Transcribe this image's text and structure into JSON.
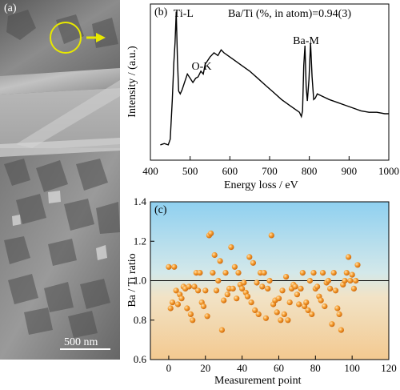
{
  "panel_a": {
    "label": "(a)",
    "scale_bar": "500 nm"
  },
  "chart_data": [
    {
      "type": "line",
      "panel_label": "(b)",
      "xlabel": "Energy loss / eV",
      "ylabel": "Intensity / (a.u.)",
      "xlim": [
        400,
        1000
      ],
      "xticks": [
        400,
        500,
        600,
        700,
        800,
        900,
        1000
      ],
      "annotation": "Ba/Ti (%, in atom)=0.94(3)",
      "peak_labels": [
        {
          "text": "Ti-L",
          "x": 462
        },
        {
          "text": "O-K",
          "x": 532
        },
        {
          "text": "Ba-M",
          "x": 795
        }
      ],
      "series": [
        {
          "x": [
            425,
            435,
            445,
            450,
            455,
            459,
            462,
            465,
            468,
            471,
            475,
            480,
            487,
            493,
            500,
            507,
            514,
            520,
            527,
            533,
            538,
            543,
            550,
            560,
            570,
            578,
            585,
            595,
            610,
            630,
            650,
            670,
            690,
            710,
            730,
            750,
            765,
            775,
            780,
            783,
            786,
            789,
            792,
            795,
            799,
            803,
            807,
            811,
            815,
            820,
            835,
            850,
            870,
            890,
            910,
            930,
            950,
            970,
            990,
            1000
          ],
          "y": [
            0.04,
            0.05,
            0.04,
            0.08,
            0.35,
            0.62,
            0.76,
            0.98,
            0.64,
            0.42,
            0.4,
            0.43,
            0.49,
            0.54,
            0.51,
            0.48,
            0.51,
            0.52,
            0.56,
            0.54,
            0.61,
            0.63,
            0.66,
            0.69,
            0.67,
            0.71,
            0.69,
            0.67,
            0.64,
            0.6,
            0.56,
            0.51,
            0.46,
            0.41,
            0.36,
            0.32,
            0.29,
            0.27,
            0.24,
            0.28,
            0.6,
            0.74,
            0.45,
            0.35,
            0.5,
            0.76,
            0.52,
            0.36,
            0.37,
            0.4,
            0.38,
            0.36,
            0.34,
            0.32,
            0.3,
            0.28,
            0.27,
            0.27,
            0.26,
            0.26
          ]
        }
      ]
    },
    {
      "type": "scatter",
      "panel_label": "(c)",
      "xlabel": "Measurement point",
      "ylabel": "Ba / Ti ratio",
      "xlim": [
        -10,
        120
      ],
      "ylim": [
        0.6,
        1.4
      ],
      "xticks": [
        0,
        20,
        40,
        60,
        80,
        100,
        120
      ],
      "yticks": [
        0.6,
        0.8,
        1.0,
        1.2,
        1.4
      ],
      "reference_line": 1.0,
      "background": "gradient sky-blue top to light orange bottom",
      "marker_color": "#f08a1c",
      "series": [
        {
          "x": [
            0,
            1,
            2,
            3,
            4,
            5,
            6,
            7,
            8,
            9,
            10,
            11,
            12,
            13,
            14,
            15,
            16,
            17,
            18,
            19,
            20,
            21,
            22,
            23,
            24,
            25,
            26,
            27,
            28,
            29,
            30,
            31,
            32,
            33,
            34,
            35,
            36,
            37,
            38,
            39,
            40,
            41,
            42,
            43,
            44,
            45,
            46,
            47,
            48,
            49,
            50,
            51,
            52,
            53,
            54,
            55,
            56,
            57,
            58,
            59,
            60,
            61,
            62,
            63,
            64,
            65,
            66,
            67,
            68,
            69,
            70,
            71,
            72,
            73,
            74,
            75,
            76,
            77,
            78,
            79,
            80,
            81,
            82,
            83,
            84,
            85,
            86,
            87,
            88,
            89,
            90,
            91,
            92,
            93,
            94,
            95,
            96,
            97,
            98,
            99,
            100,
            101,
            102,
            103
          ],
          "y": [
            1.07,
            0.86,
            0.89,
            1.07,
            0.95,
            0.88,
            0.93,
            0.91,
            0.97,
            0.96,
            0.86,
            0.97,
            0.83,
            0.8,
            0.97,
            1.04,
            0.95,
            1.04,
            0.89,
            0.87,
            0.95,
            0.82,
            1.23,
            1.24,
            1.04,
            1.13,
            0.95,
            1.0,
            1.1,
            0.75,
            0.9,
            1.04,
            0.93,
            0.96,
            1.17,
            0.96,
            1.07,
            0.91,
            1.04,
            0.98,
            0.96,
            0.99,
            0.94,
            0.92,
            1.12,
            0.89,
            1.09,
            0.85,
            0.99,
            0.83,
            1.04,
            0.97,
            1.04,
            0.81,
            0.96,
            1.0,
            1.23,
            0.88,
            0.9,
            0.84,
            0.91,
            0.8,
            0.95,
            0.83,
            1.02,
            0.8,
            0.89,
            0.96,
            0.98,
            0.97,
            0.93,
            0.88,
            0.96,
            1.04,
            0.87,
            0.89,
            0.85,
            1.0,
            0.83,
            1.04,
            0.96,
            0.97,
            0.92,
            0.9,
            1.04,
            0.87,
            0.99,
            1.0,
            0.96,
            0.78,
            1.04,
            0.95,
            0.86,
            0.83,
            0.75,
            0.98,
            1.0,
            1.04,
            1.12,
            1.0,
            1.03,
            0.96,
            1.0,
            1.08
          ]
        }
      ]
    }
  ]
}
